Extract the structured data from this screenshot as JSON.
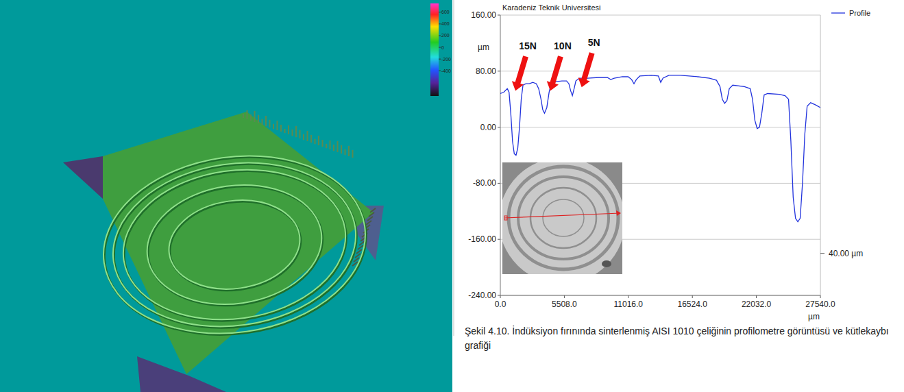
{
  "chart_data": {
    "type": "line",
    "title": "Karadeniz Teknik Universitesi",
    "y_label": "µm",
    "x_label": "µm",
    "x": [
      0,
      300,
      600,
      750,
      900,
      1050,
      1200,
      1350,
      1500,
      1650,
      1800,
      1950,
      2200,
      2500,
      2800,
      3100,
      3300,
      3500,
      3650,
      3800,
      4000,
      4200,
      4400,
      4800,
      5300,
      5700,
      5900,
      6050,
      6200,
      6350,
      6500,
      6800,
      7500,
      8500,
      9200,
      9500,
      9800,
      10500,
      11000,
      11300,
      11500,
      11700,
      12000,
      13000,
      13600,
      13800,
      14000,
      14500,
      15500,
      17000,
      18000,
      18600,
      18900,
      19100,
      19300,
      19500,
      19700,
      20000,
      21000,
      21500,
      21700,
      21900,
      22100,
      22300,
      22500,
      22700,
      23000,
      24000,
      24500,
      24800,
      25000,
      25200,
      25400,
      25600,
      25800,
      26000,
      26200,
      26400,
      26700,
      27100,
      27540
    ],
    "series": [
      {
        "name": "Profile",
        "color": "#2233dd",
        "values": [
          48,
          50,
          55,
          50,
          20,
          -20,
          -38,
          -40,
          -30,
          0,
          40,
          60,
          62,
          62,
          64,
          62,
          55,
          40,
          25,
          20,
          28,
          50,
          64,
          65,
          66,
          66,
          62,
          52,
          45,
          55,
          66,
          70,
          70,
          71,
          71,
          68,
          70,
          72,
          72,
          68,
          62,
          68,
          73,
          74,
          73,
          64,
          70,
          74,
          74,
          72,
          70,
          67,
          58,
          40,
          34,
          38,
          55,
          60,
          58,
          55,
          40,
          10,
          -2,
          0,
          20,
          46,
          48,
          47,
          45,
          40,
          -20,
          -100,
          -130,
          -135,
          -130,
          -80,
          -10,
          30,
          35,
          32,
          28
        ]
      }
    ],
    "xlim": [
      0,
      27540
    ],
    "xticks": [
      {
        "value": 0,
        "label": "0.0"
      },
      {
        "value": 5508,
        "label": "5508.0"
      },
      {
        "value": 11016,
        "label": "11016.0"
      },
      {
        "value": 16524,
        "label": "16524.0"
      },
      {
        "value": 22032,
        "label": "22032.0"
      },
      {
        "value": 27540,
        "label": "27540.0"
      }
    ],
    "ylim": [
      -240,
      160
    ],
    "yticks": [
      {
        "value": 160,
        "label": "160.00"
      },
      {
        "value": 80,
        "label": "80.00"
      },
      {
        "value": 0,
        "label": "0.00"
      },
      {
        "value": -80,
        "label": "-80.00"
      },
      {
        "value": -160,
        "label": "-160.00"
      },
      {
        "value": -240,
        "label": "-240.00"
      }
    ],
    "grid": true,
    "legend": "top-right",
    "annotations": [
      {
        "text": "15N",
        "x": 1300,
        "y": 52
      },
      {
        "text": "10N",
        "x": 4300,
        "y": 52
      },
      {
        "text": "5N",
        "x": 7000,
        "y": 57
      }
    ],
    "right_note": {
      "text": "40.00 µm",
      "y": -180
    }
  },
  "surface_view": {
    "colorbar": {
      "range": [
        -830,
        750
      ],
      "ticks": [
        600,
        400,
        200,
        0,
        -200,
        -400
      ]
    }
  },
  "caption": "Şekil 4.10. İndüksiyon fırınında sinterlenmiş AISI 1010 çeliğinin profilometre görüntüsü ve kütlekaybı grafiği"
}
